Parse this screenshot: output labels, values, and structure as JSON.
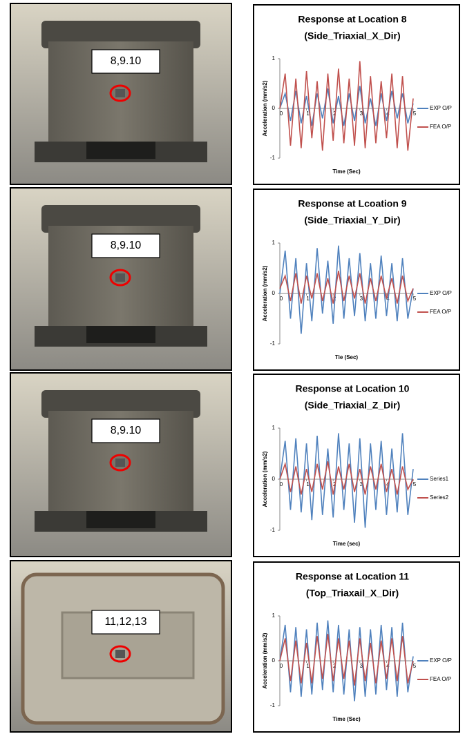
{
  "photo_labels": [
    "8,9.10",
    "8,9.10",
    "8,9.10",
    "11,12,13"
  ],
  "chart_data": [
    {
      "type": "line",
      "title": "Response at Location 8",
      "subtitle": "(Side_Triaxial_X_Dir)",
      "xlabel": "Time (Sec)",
      "ylabel": "Acceleration (mm/s2)",
      "legend": "right",
      "xlim": [
        0,
        5
      ],
      "xticks": [
        0,
        1,
        2,
        3,
        4,
        5
      ],
      "ylim": [
        -1,
        1
      ],
      "yticks": [
        -1,
        0,
        1
      ],
      "x": [
        0,
        0.2,
        0.4,
        0.6,
        0.8,
        1,
        1.2,
        1.4,
        1.6,
        1.8,
        2,
        2.2,
        2.4,
        2.6,
        2.8,
        3,
        3.2,
        3.4,
        3.6,
        3.8,
        4,
        4.2,
        4.4,
        4.6,
        4.8,
        5
      ],
      "series": [
        {
          "name": "EXP O/P",
          "color": "#4f81bd",
          "values": [
            0,
            0.3,
            -0.25,
            0.35,
            -0.3,
            0.25,
            -0.35,
            0.3,
            -0.2,
            0.4,
            -0.3,
            0.25,
            -0.35,
            0.3,
            -0.25,
            0.45,
            -0.3,
            0.2,
            -0.35,
            0.3,
            -0.25,
            0.35,
            -0.2,
            0.3,
            -0.3,
            0.1
          ]
        },
        {
          "name": "FEA O/P",
          "color": "#c0504d",
          "values": [
            0,
            0.7,
            -0.75,
            0.6,
            -0.8,
            0.75,
            -0.6,
            0.55,
            -0.85,
            0.7,
            -0.65,
            0.8,
            -0.7,
            0.6,
            -0.75,
            0.95,
            -0.8,
            0.65,
            -0.7,
            0.55,
            -0.6,
            0.7,
            -0.8,
            0.65,
            -0.85,
            0.2
          ]
        }
      ]
    },
    {
      "type": "line",
      "title": "Response at Lcoation 9",
      "subtitle": "(Side_Triaxial_Y_Dir)",
      "xlabel": "Tie (Sec)",
      "ylabel": "Acceleration (mm/s2)",
      "legend": "right",
      "xlim": [
        0,
        5
      ],
      "xticks": [
        0,
        1,
        2,
        3,
        4,
        5
      ],
      "ylim": [
        -1,
        1
      ],
      "yticks": [
        -1,
        0,
        1
      ],
      "x": [
        0,
        0.2,
        0.4,
        0.6,
        0.8,
        1,
        1.2,
        1.4,
        1.6,
        1.8,
        2,
        2.2,
        2.4,
        2.6,
        2.8,
        3,
        3.2,
        3.4,
        3.6,
        3.8,
        4,
        4.2,
        4.4,
        4.6,
        4.8,
        5
      ],
      "series": [
        {
          "name": "EXP O/P",
          "color": "#4f81bd",
          "values": [
            0,
            0.85,
            -0.5,
            0.7,
            -0.8,
            0.6,
            -0.55,
            0.9,
            -0.4,
            0.65,
            -0.6,
            0.95,
            -0.5,
            0.7,
            -0.45,
            0.8,
            -0.55,
            0.6,
            -0.5,
            0.75,
            -0.45,
            0.6,
            -0.55,
            0.7,
            -0.5,
            0.1
          ]
        },
        {
          "name": "FEA O/P",
          "color": "#c0504d",
          "values": [
            0.1,
            0.35,
            -0.15,
            0.4,
            -0.2,
            0.35,
            -0.1,
            0.4,
            -0.15,
            0.3,
            -0.2,
            0.45,
            -0.15,
            0.35,
            -0.1,
            0.4,
            -0.2,
            0.3,
            -0.15,
            0.35,
            -0.1,
            0.3,
            -0.2,
            0.35,
            -0.15,
            0.1
          ]
        }
      ]
    },
    {
      "type": "line",
      "title": "Response at Location 10",
      "subtitle": "(Side_Triaxial_Z_Dir)",
      "xlabel": "Time (sec)",
      "ylabel": "Acceleration (mm/s2)",
      "legend": "right",
      "xlim": [
        0,
        5
      ],
      "xticks": [
        0,
        1,
        2,
        3,
        4,
        5
      ],
      "ylim": [
        -1,
        1
      ],
      "yticks": [
        -1,
        0,
        1
      ],
      "x": [
        0,
        0.2,
        0.4,
        0.6,
        0.8,
        1,
        1.2,
        1.4,
        1.6,
        1.8,
        2,
        2.2,
        2.4,
        2.6,
        2.8,
        3,
        3.2,
        3.4,
        3.6,
        3.8,
        4,
        4.2,
        4.4,
        4.6,
        4.8,
        5
      ],
      "series": [
        {
          "name": "Series1",
          "color": "#4f81bd",
          "values": [
            0,
            0.75,
            -0.6,
            0.8,
            -0.65,
            0.7,
            -0.8,
            0.85,
            -0.7,
            0.6,
            -0.75,
            0.9,
            -0.6,
            0.7,
            -0.85,
            0.8,
            -0.95,
            0.7,
            -0.6,
            0.75,
            -0.7,
            0.6,
            -0.65,
            0.9,
            -0.7,
            0.2
          ]
        },
        {
          "name": "Series2",
          "color": "#c0504d",
          "values": [
            0,
            0.3,
            -0.25,
            0.25,
            -0.3,
            0.2,
            -0.25,
            0.3,
            -0.2,
            0.35,
            -0.3,
            0.25,
            -0.2,
            0.3,
            -0.25,
            0.2,
            -0.3,
            0.25,
            -0.2,
            0.3,
            -0.25,
            0.2,
            -0.3,
            0.25,
            -0.2,
            0
          ]
        }
      ]
    },
    {
      "type": "line",
      "title": "Response at Location 11",
      "subtitle": "(Top_Triaxail_X_Dir)",
      "xlabel": "Time (Sec)",
      "ylabel": "Acceleration (mm/s2)",
      "legend": "right",
      "xlim": [
        0,
        5
      ],
      "xticks": [
        0,
        1,
        2,
        3,
        4,
        5
      ],
      "ylim": [
        -1,
        1
      ],
      "yticks": [
        -1,
        0,
        1
      ],
      "x": [
        0,
        0.2,
        0.4,
        0.6,
        0.8,
        1,
        1.2,
        1.4,
        1.6,
        1.8,
        2,
        2.2,
        2.4,
        2.6,
        2.8,
        3,
        3.2,
        3.4,
        3.6,
        3.8,
        4,
        4.2,
        4.4,
        4.6,
        4.8,
        5
      ],
      "series": [
        {
          "name": "EXP O/P",
          "color": "#4f81bd",
          "values": [
            0,
            0.8,
            -0.7,
            0.75,
            -0.8,
            0.7,
            -0.75,
            0.85,
            -0.65,
            0.9,
            -0.7,
            0.8,
            -0.75,
            0.7,
            -0.9,
            0.75,
            -0.8,
            0.7,
            -0.75,
            0.8,
            -0.65,
            0.75,
            -0.8,
            0.85,
            -0.7,
            0.1
          ]
        },
        {
          "name": "FEA O/P",
          "color": "#c0504d",
          "values": [
            0,
            0.5,
            -0.45,
            0.45,
            -0.5,
            0.4,
            -0.5,
            0.55,
            -0.4,
            0.6,
            -0.45,
            0.5,
            -0.4,
            0.45,
            -0.55,
            0.5,
            -0.45,
            0.4,
            -0.5,
            0.45,
            -0.4,
            0.5,
            -0.45,
            0.55,
            -0.5,
            0
          ]
        }
      ]
    }
  ]
}
